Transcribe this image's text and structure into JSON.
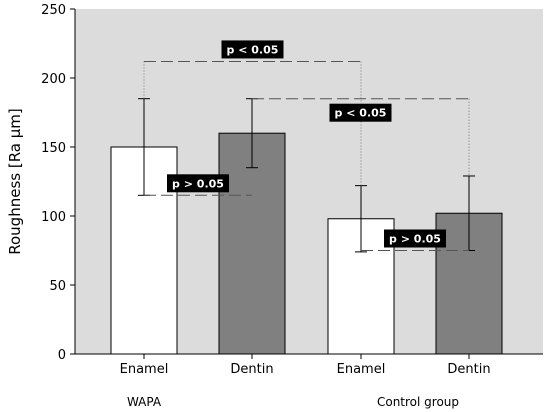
{
  "chart_data": {
    "type": "bar",
    "ylabel": "Roughness [Ra µm]",
    "ylim": [
      0,
      250
    ],
    "yticks": [
      0,
      50,
      100,
      150,
      200,
      250
    ],
    "grid": false,
    "background": "#dcdcdc",
    "groups": [
      {
        "label": "WAPA"
      },
      {
        "label": "Control group"
      }
    ],
    "bars": [
      {
        "category": "Enamel",
        "group": 0,
        "value": 150,
        "err_low": 115,
        "err_high": 185,
        "color": "#ffffff"
      },
      {
        "category": "Dentin",
        "group": 0,
        "value": 160,
        "err_low": 135,
        "err_high": 185,
        "color": "#808080"
      },
      {
        "category": "Enamel",
        "group": 1,
        "value": 98,
        "err_low": 74,
        "err_high": 122,
        "color": "#ffffff"
      },
      {
        "category": "Dentin",
        "group": 1,
        "value": 102,
        "err_low": 75,
        "err_high": 129,
        "color": "#808080"
      }
    ],
    "annotations": [
      {
        "text": "p < 0.05",
        "from": 0,
        "to": 2,
        "y": 212
      },
      {
        "text": "p < 0.05",
        "from": 1,
        "to": 3,
        "y": 185
      },
      {
        "text": "p > 0.05",
        "from": 0,
        "to": 1,
        "y": 115
      },
      {
        "text": "p > 0.05",
        "from": 2,
        "to": 3,
        "y": 75
      }
    ]
  }
}
